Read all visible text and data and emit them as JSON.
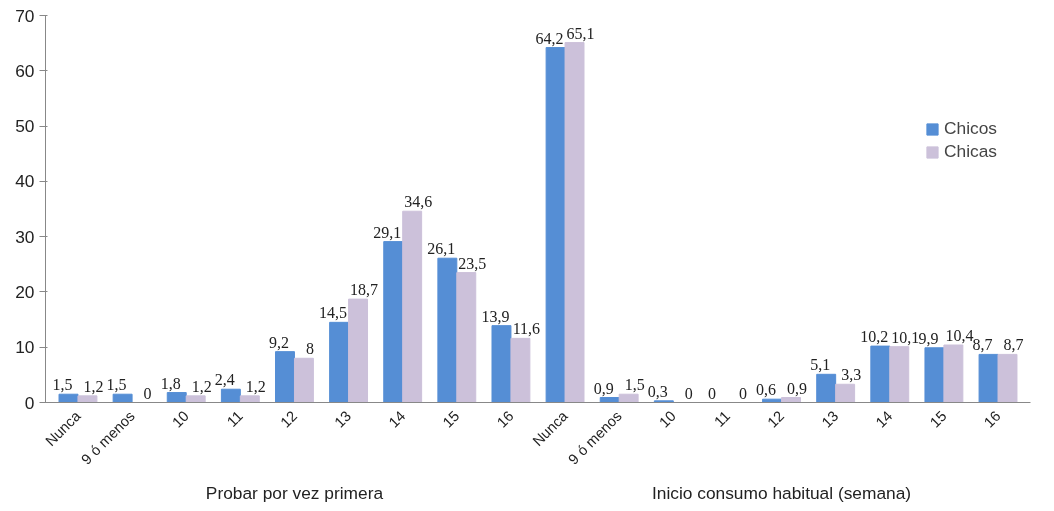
{
  "chart_data": {
    "type": "bar",
    "categories": [
      "Nunca",
      "9 ó menos",
      "10",
      "11",
      "12",
      "13",
      "14",
      "15",
      "16",
      "Nunca",
      "9 ó menos",
      "10",
      "11",
      "12",
      "13",
      "14",
      "15",
      "16"
    ],
    "series": [
      {
        "name": "Chicos",
        "color": "#558ed5",
        "values": [
          1.5,
          1.5,
          1.8,
          2.4,
          9.2,
          14.5,
          29.1,
          26.1,
          13.9,
          64.2,
          0.9,
          0.3,
          0,
          0.6,
          5.1,
          10.2,
          9.9,
          8.7
        ],
        "value_labels": [
          "1,5",
          "1,5",
          "1,8",
          "2,4",
          "9,2",
          "14,5",
          "29,1",
          "26,1",
          "13,9",
          "64,2",
          "0,9",
          "0,3",
          "0",
          "0,6",
          "5,1",
          "10,2",
          "9,9",
          "8,7"
        ]
      },
      {
        "name": "Chicas",
        "color": "#ccc1da",
        "values": [
          1.2,
          0,
          1.2,
          1.2,
          8,
          18.7,
          34.6,
          23.5,
          11.6,
          65.1,
          1.5,
          0,
          0,
          0.9,
          3.3,
          10.1,
          10.4,
          8.7
        ],
        "value_labels": [
          "1,2",
          "0",
          "1,2",
          "1,2",
          "8",
          "18,7",
          "34,6",
          "23,5",
          "11,6",
          "65,1",
          "1,5",
          "0",
          "0",
          "0,9",
          "3,3",
          "10,1",
          "10,4",
          "8,7"
        ]
      }
    ],
    "ylim": [
      0,
      70
    ],
    "yticks": [
      0,
      10,
      20,
      30,
      40,
      50,
      60,
      70
    ],
    "grid": false,
    "legend": "right",
    "annotations": [
      "Probar por vez primera",
      "Inicio consumo habitual (semana)"
    ]
  }
}
